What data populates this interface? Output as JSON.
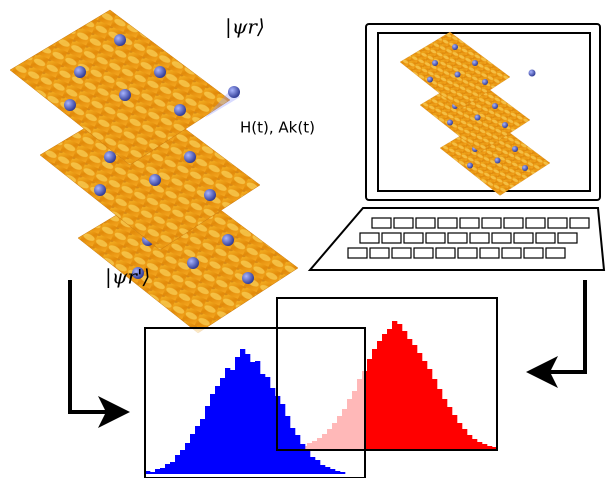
{
  "labels": {
    "state_top": "|ψr⟩",
    "operators": "H(t), Ak(t)",
    "state_bottom": "|ψr'⟩"
  },
  "histograms": [
    {
      "color": "#ff0000",
      "values": [
        4,
        3,
        6,
        8,
        11,
        15,
        20,
        26,
        33,
        40,
        50,
        58,
        70,
        78,
        90,
        100,
        108,
        115,
        120,
        128,
        125,
        118,
        110,
        104,
        96,
        88,
        80,
        70,
        60,
        50,
        42,
        34,
        26,
        20,
        14,
        10,
        7,
        5,
        3,
        2
      ]
    },
    {
      "color": "#0000ff",
      "values": [
        3,
        2,
        5,
        6,
        10,
        12,
        19,
        24,
        31,
        40,
        48,
        55,
        68,
        80,
        88,
        96,
        106,
        104,
        117,
        125,
        120,
        112,
        113,
        100,
        97,
        86,
        78,
        70,
        58,
        46,
        39,
        30,
        24,
        17,
        14,
        9,
        7,
        5,
        3,
        2
      ]
    }
  ]
}
